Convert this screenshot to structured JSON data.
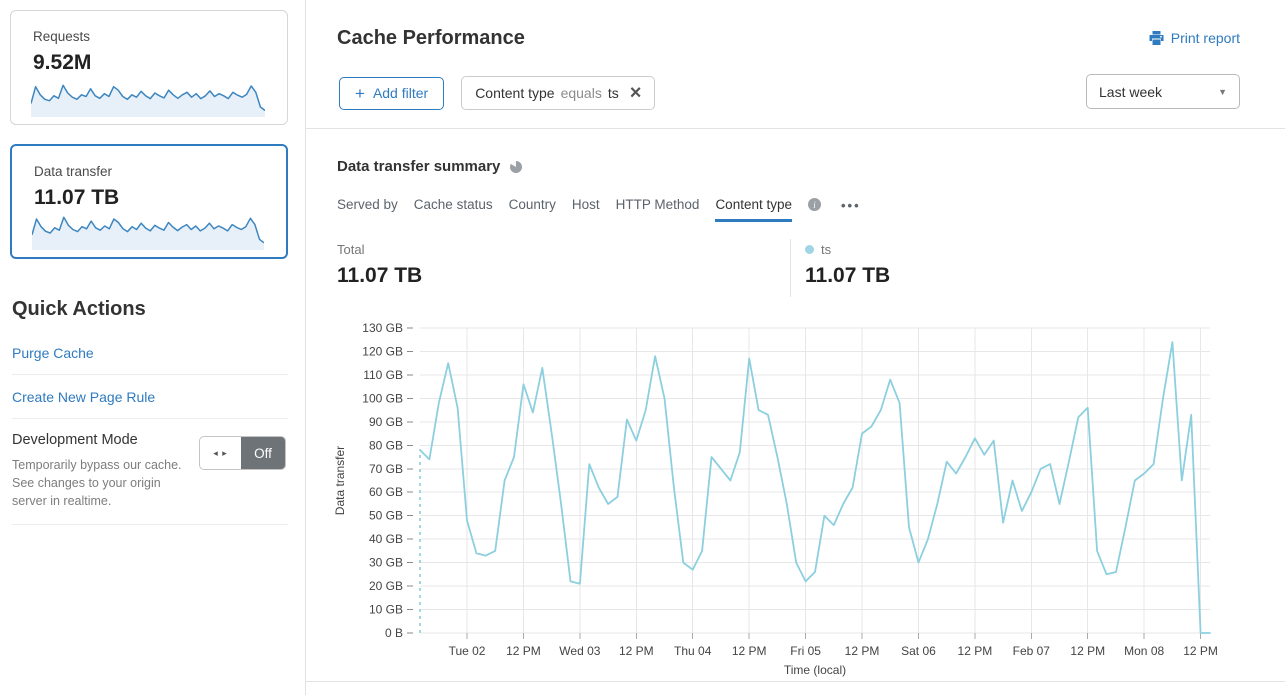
{
  "colors": {
    "accent_blue": "#2f7bbf",
    "chart_line": "#8ccfdf",
    "legend_dot": "#9fd5e4",
    "sparkline_stroke": "#3e86c0",
    "sparkline_fill": "#e7f0f8",
    "toggle_off_bg": "#6d7377"
  },
  "icons": {
    "plus": "+",
    "close": "×",
    "caret": "▼",
    "more": "•••",
    "info": "i",
    "toggle_arrows": "◂ ▸"
  },
  "sidebar": {
    "cards": [
      {
        "label": "Requests",
        "value": "9.52M",
        "selected": false,
        "spark": [
          30,
          78,
          55,
          42,
          38,
          52,
          45,
          82,
          60,
          48,
          42,
          55,
          50,
          72,
          52,
          45,
          58,
          50,
          78,
          68,
          50,
          42,
          55,
          48,
          65,
          52,
          44,
          60,
          52,
          46,
          68,
          55,
          45,
          55,
          62,
          48,
          58,
          44,
          52,
          66,
          50,
          58,
          52,
          44,
          62,
          54,
          48,
          56,
          80,
          62,
          20,
          10
        ]
      },
      {
        "label": "Data transfer",
        "value": "11.07 TB",
        "selected": true,
        "spark": [
          35,
          80,
          58,
          45,
          40,
          55,
          48,
          85,
          62,
          50,
          44,
          58,
          52,
          74,
          55,
          48,
          60,
          52,
          80,
          70,
          52,
          44,
          58,
          50,
          68,
          54,
          46,
          62,
          54,
          48,
          70,
          57,
          47,
          57,
          64,
          50,
          60,
          46,
          54,
          68,
          52,
          60,
          54,
          46,
          64,
          56,
          50,
          58,
          82,
          64,
          22,
          12
        ]
      }
    ],
    "quick_actions": {
      "title": "Quick Actions",
      "links": [
        "Purge Cache",
        "Create New Page Rule"
      ],
      "dev_mode": {
        "label": "Development Mode",
        "description": "Temporarily bypass our cache. See changes to your origin server in realtime.",
        "state": "Off"
      }
    }
  },
  "header": {
    "title": "Cache Performance",
    "print_label": "Print report"
  },
  "filters": {
    "add_label": "Add filter",
    "chip": {
      "field": "Content type",
      "operator": "equals",
      "value": "ts"
    },
    "range_value": "Last week"
  },
  "summary": {
    "title": "Data transfer summary",
    "tabs": [
      {
        "label": "Served by",
        "active": false
      },
      {
        "label": "Cache status",
        "active": false
      },
      {
        "label": "Country",
        "active": false
      },
      {
        "label": "Host",
        "active": false
      },
      {
        "label": "HTTP Method",
        "active": false
      },
      {
        "label": "Content type",
        "active": true,
        "has_info": true
      }
    ],
    "total": {
      "label": "Total",
      "value": "11.07 TB"
    },
    "legend": {
      "name": "ts",
      "value": "11.07 TB"
    }
  },
  "chart_data": {
    "type": "line",
    "title": "Data transfer summary",
    "xlabel": "Time (local)",
    "ylabel": "Data transfer",
    "unit": "GB",
    "ylim": [
      0,
      130
    ],
    "grid": true,
    "legend_position": "top",
    "start_dashed": true,
    "y_ticks": [
      "0 B",
      "10 GB",
      "20 GB",
      "30 GB",
      "40 GB",
      "50 GB",
      "60 GB",
      "70 GB",
      "80 GB",
      "90 GB",
      "100 GB",
      "110 GB",
      "120 GB",
      "130 GB"
    ],
    "x_ticks": [
      "Tue 02",
      "12 PM",
      "Wed 03",
      "12 PM",
      "Thu 04",
      "12 PM",
      "Fri 05",
      "12 PM",
      "Sat 06",
      "12 PM",
      "Feb 07",
      "12 PM",
      "Mon 08",
      "12 PM"
    ],
    "tick_start_index": 5,
    "tick_step": 6,
    "point_interval_hours": 2,
    "series": [
      {
        "name": "ts",
        "color": "#8ccfdf",
        "values": [
          78,
          74,
          98,
          115,
          96,
          48,
          34,
          33,
          35,
          65,
          75,
          106,
          94,
          113,
          85,
          55,
          22,
          21,
          72,
          62,
          55,
          58,
          91,
          82,
          95,
          118,
          100,
          62,
          30,
          27,
          35,
          75,
          70,
          65,
          77,
          117,
          95,
          93,
          75,
          55,
          30,
          22,
          26,
          50,
          46,
          55,
          62,
          85,
          88,
          95,
          108,
          98,
          45,
          30,
          40,
          55,
          73,
          68,
          75,
          83,
          76,
          82,
          47,
          65,
          52,
          60,
          70,
          72,
          55,
          73,
          92,
          96,
          35,
          25,
          26,
          45,
          65,
          68,
          72,
          100,
          124,
          65,
          93,
          0,
          0
        ]
      }
    ]
  }
}
